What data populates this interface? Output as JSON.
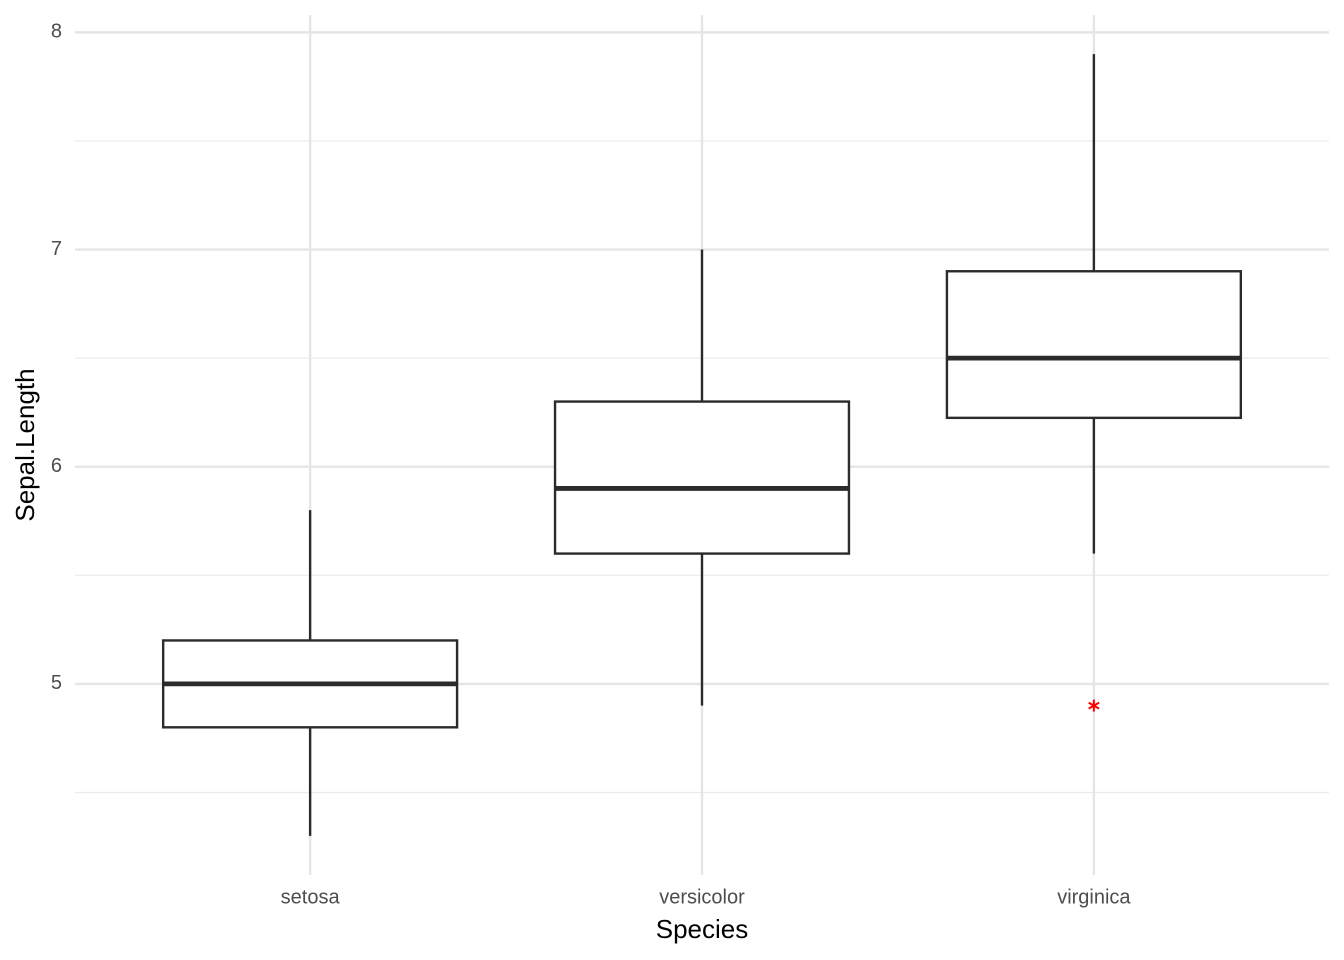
{
  "chart_data": {
    "type": "box",
    "x_label": "Species",
    "y_label": "Sepal.Length",
    "categories": [
      "setosa",
      "versicolor",
      "virginica"
    ],
    "boxes": [
      {
        "min": 4.3,
        "q1": 4.8,
        "median": 5.0,
        "q3": 5.2,
        "max": 5.8,
        "outliers": []
      },
      {
        "min": 4.9,
        "q1": 5.6,
        "median": 5.9,
        "q3": 6.3,
        "max": 7.0,
        "outliers": []
      },
      {
        "min": 5.6,
        "q1": 6.225,
        "median": 6.5,
        "q3": 6.9,
        "max": 7.9,
        "outliers": [
          4.9
        ]
      }
    ],
    "color": "#2b2b2b",
    "fill": "#ffffff",
    "outlier_color": "#ff0000",
    "ylim": [
      4.12,
      8.08
    ],
    "yticks": [
      5,
      6,
      7,
      8
    ],
    "yminor": [
      4.5,
      5.5,
      6.5,
      7.5
    ],
    "grid": true
  }
}
